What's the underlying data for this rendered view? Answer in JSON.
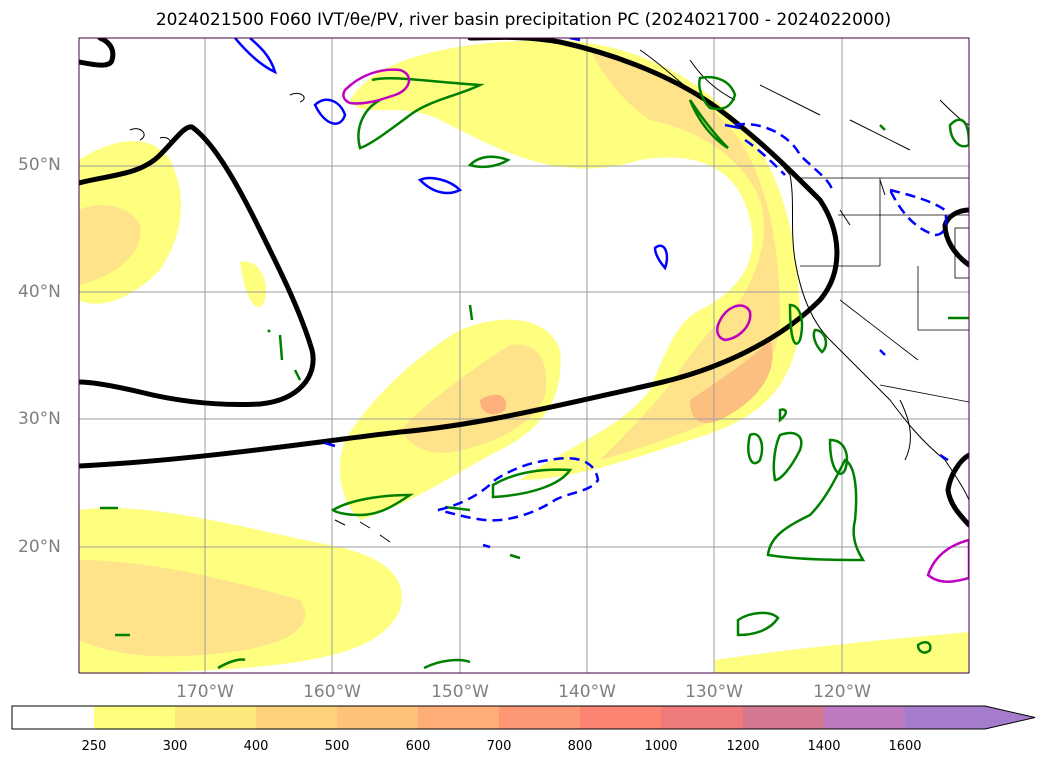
{
  "title_text": "2024021500 F060 IVT/θe/PV, river basin precipitation PC (2024021700 - 2024022000)",
  "lat_labels": [
    "50°N",
    "40°N",
    "30°N",
    "20°N"
  ],
  "lon_labels": [
    "170°W",
    "160°W",
    "150°W",
    "140°W",
    "130°W",
    "120°W"
  ],
  "colorbar": {
    "levels": [
      "250",
      "300",
      "400",
      "500",
      "600",
      "700",
      "800",
      "1000",
      "1200",
      "1400",
      "1600"
    ],
    "colors": [
      "#ffffff",
      "#fefe7f",
      "#fee87b",
      "#fed27a",
      "#fec278",
      "#fead77",
      "#fe9874",
      "#fd8472",
      "#ee7a7a",
      "#d47791",
      "#bd7ac0",
      "#a57ccc"
    ]
  },
  "legend_colors": {
    "ivt_fill_low": "#fefe7f",
    "ivt_fill_mid": "#fee38a",
    "ivt_fill_high": "#fdb07c",
    "theta_contour": "#000000",
    "pv_contour": "#008000",
    "blue_contour": "#0000ff",
    "magenta_contour": "#c000c0"
  }
}
